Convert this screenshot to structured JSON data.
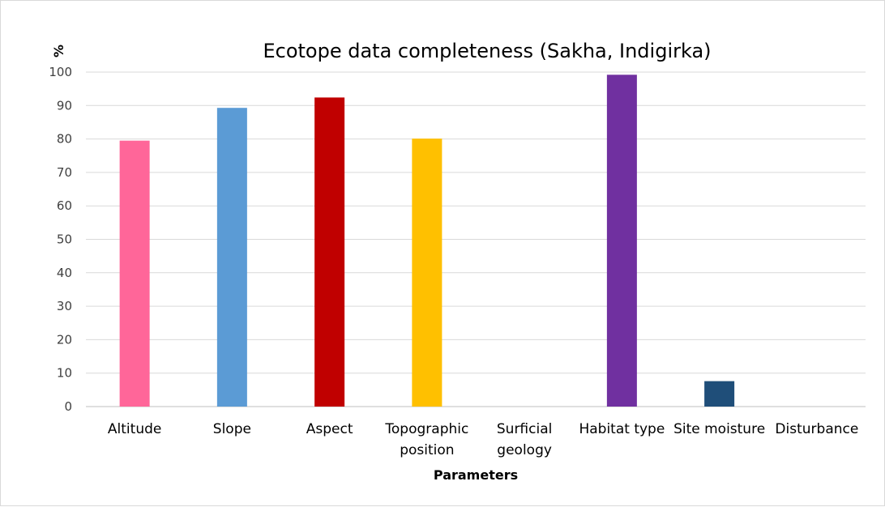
{
  "chart_data": {
    "type": "bar",
    "title": "Ecotope data completeness (Sakha, Indigirka)",
    "ylabel": "%",
    "xlabel": "Parameters",
    "ylim": [
      0,
      100
    ],
    "yticks": [
      "0",
      "10",
      "20",
      "30",
      "40",
      "50",
      "60",
      "70",
      "80",
      "90",
      "100"
    ],
    "grid": true,
    "categories": [
      [
        "Altitude"
      ],
      [
        "Slope"
      ],
      [
        "Aspect"
      ],
      [
        "Topographic",
        "position"
      ],
      [
        "Surficial",
        "geology"
      ],
      [
        "Habitat type"
      ],
      [
        "Site moisture"
      ],
      [
        "Disturbance"
      ]
    ],
    "values": [
      79.5,
      89.3,
      92.4,
      80.1,
      0,
      99.2,
      7.6,
      0
    ],
    "colors": [
      "#ff6699",
      "#5b9bd5",
      "#c00000",
      "#ffc000",
      "#a5a5a5",
      "#7030a0",
      "#1f4e79",
      "#70ad47"
    ]
  }
}
